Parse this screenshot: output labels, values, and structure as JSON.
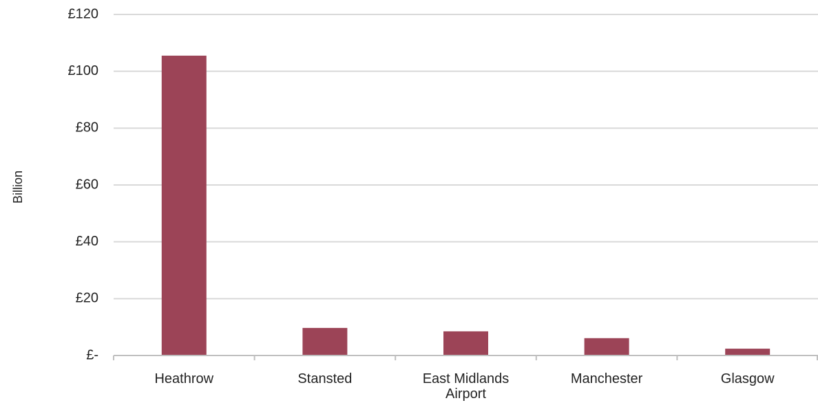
{
  "chart_data": {
    "type": "bar",
    "title": "",
    "xlabel": "",
    "ylabel": "Billion",
    "categories": [
      "Heathrow",
      "Stansted",
      "East Midlands Airport",
      "Manchester",
      "Glasgow"
    ],
    "category_lines": [
      [
        "Heathrow"
      ],
      [
        "Stansted"
      ],
      [
        "East Midlands",
        "Airport"
      ],
      [
        "Manchester"
      ],
      [
        "Glasgow"
      ]
    ],
    "values": [
      105.5,
      9.7,
      8.5,
      6.1,
      2.4
    ],
    "ylim": [
      0,
      120
    ],
    "yticks": [
      0,
      20,
      40,
      60,
      80,
      100,
      120
    ],
    "ytick_labels": [
      "£-",
      "£20",
      "£40",
      "£60",
      "£80",
      "£100",
      "£120"
    ],
    "grid": true,
    "legend": "none",
    "bar_color": "#9c4457",
    "grid_color": "#d9d9d9",
    "axis_color": "#bfbfbf"
  }
}
